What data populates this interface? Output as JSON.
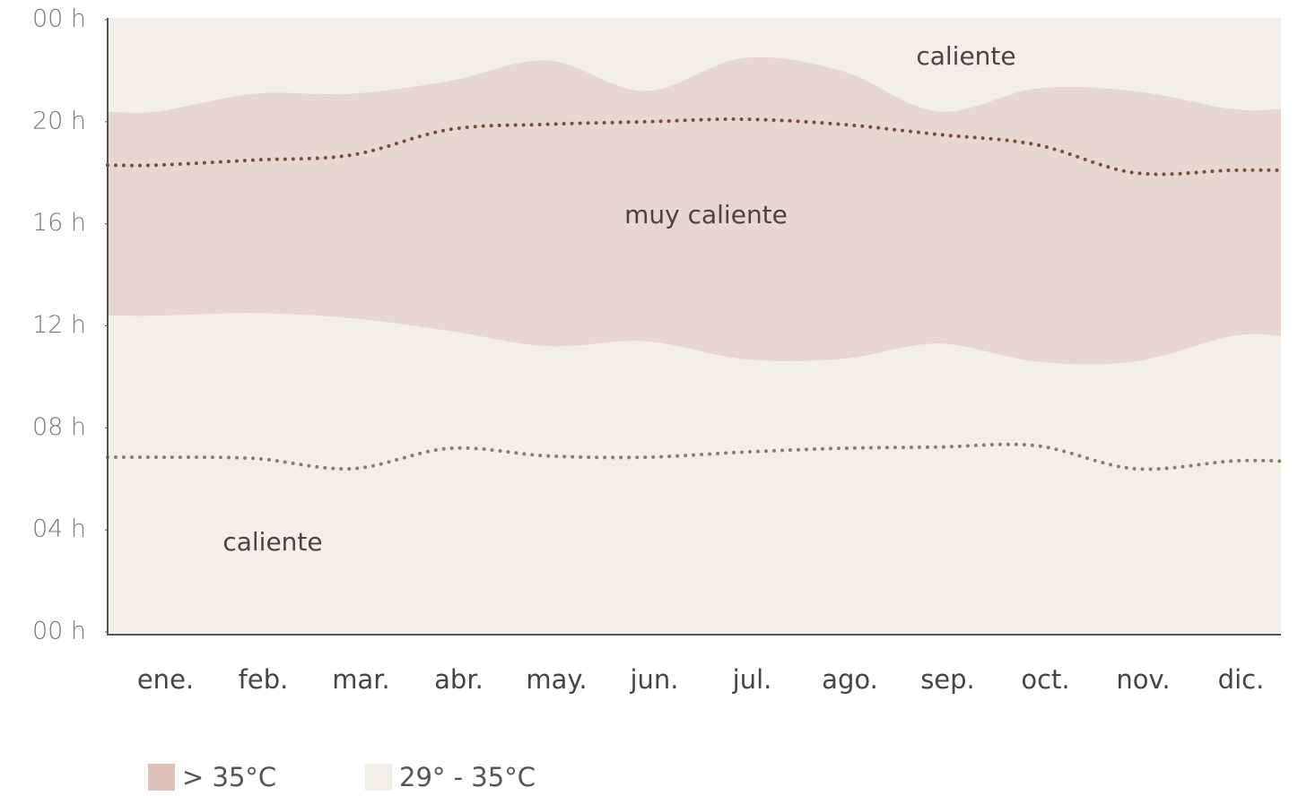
{
  "chart_data": {
    "type": "band",
    "categories": [
      "ene.",
      "feb.",
      "mar.",
      "abr.",
      "may.",
      "jun.",
      "jul.",
      "ago.",
      "sep.",
      "oct.",
      "nov.",
      "dic."
    ],
    "ylim": [
      0,
      24
    ],
    "yticks": [
      {
        "value": 0,
        "label": "00 h"
      },
      {
        "value": 4,
        "label": "04 h"
      },
      {
        "value": 8,
        "label": "08 h"
      },
      {
        "value": 12,
        "label": "12 h"
      },
      {
        "value": 16,
        "label": "16 h"
      },
      {
        "value": 20,
        "label": "20 h"
      },
      {
        "value": 24,
        "label": "00 h"
      }
    ],
    "background": {
      "name": "29° - 35°C",
      "color": "#f2efe9"
    },
    "bands": [
      {
        "name": "> 35°C",
        "color": "#e8d7d0",
        "legend_color": "#dcc1b9",
        "high": [
          20.4,
          21.1,
          21.1,
          21.6,
          22.4,
          21.2,
          22.5,
          22.0,
          20.4,
          21.3,
          21.2,
          20.5
        ],
        "low": [
          12.4,
          12.5,
          12.3,
          11.8,
          11.2,
          11.4,
          10.7,
          10.7,
          11.3,
          10.6,
          10.6,
          11.6
        ]
      }
    ],
    "lines": [
      {
        "color": "#7a4c3c",
        "values": [
          18.3,
          18.5,
          18.7,
          19.7,
          19.9,
          20.0,
          20.1,
          19.9,
          19.5,
          19.1,
          18.0,
          18.1
        ]
      },
      {
        "color": "#8c7c6e",
        "values": [
          6.85,
          6.8,
          6.4,
          7.2,
          6.9,
          6.85,
          7.05,
          7.2,
          7.25,
          7.3,
          6.4,
          6.7
        ]
      }
    ],
    "annotations": [
      "caliente",
      "muy caliente",
      "caliente"
    ]
  }
}
